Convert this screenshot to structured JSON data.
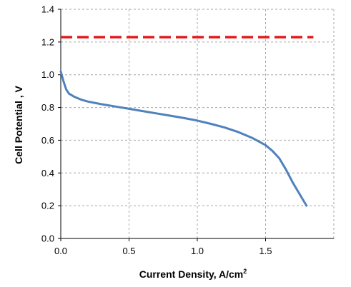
{
  "chart_data": {
    "type": "line",
    "title": "",
    "xlabel": "Current Density, A/cm",
    "xlabel_superscript": "2",
    "ylabel": "Cell Potential , V",
    "xlim": [
      0,
      2
    ],
    "ylim": [
      0,
      1.4
    ],
    "x_ticks": [
      "0.0",
      "0.5",
      "1.0",
      "1.5"
    ],
    "x_tick_values": [
      0,
      0.5,
      1.0,
      1.5
    ],
    "y_ticks": [
      "0.0",
      "0.2",
      "0.4",
      "0.6",
      "0.8",
      "1.0",
      "1.2",
      "1.4"
    ],
    "y_tick_values": [
      0,
      0.2,
      0.4,
      0.6,
      0.8,
      1.0,
      1.2,
      1.4
    ],
    "grid": true,
    "legend": "none",
    "series": [
      {
        "style": "solid",
        "color": "#4f81bd",
        "x": [
          0.0,
          0.02,
          0.04,
          0.06,
          0.1,
          0.15,
          0.2,
          0.3,
          0.4,
          0.5,
          0.6,
          0.7,
          0.8,
          0.9,
          1.0,
          1.1,
          1.2,
          1.3,
          1.4,
          1.5,
          1.55,
          1.6,
          1.65,
          1.7,
          1.75,
          1.8
        ],
        "y": [
          1.02,
          0.96,
          0.91,
          0.885,
          0.865,
          0.848,
          0.836,
          0.82,
          0.806,
          0.792,
          0.778,
          0.764,
          0.75,
          0.736,
          0.72,
          0.7,
          0.678,
          0.65,
          0.615,
          0.57,
          0.535,
          0.49,
          0.42,
          0.34,
          0.27,
          0.2
        ]
      },
      {
        "style": "dashed",
        "color": "#e41a1c",
        "x": [
          0.0,
          1.85
        ],
        "y": [
          1.23,
          1.23
        ]
      }
    ]
  }
}
